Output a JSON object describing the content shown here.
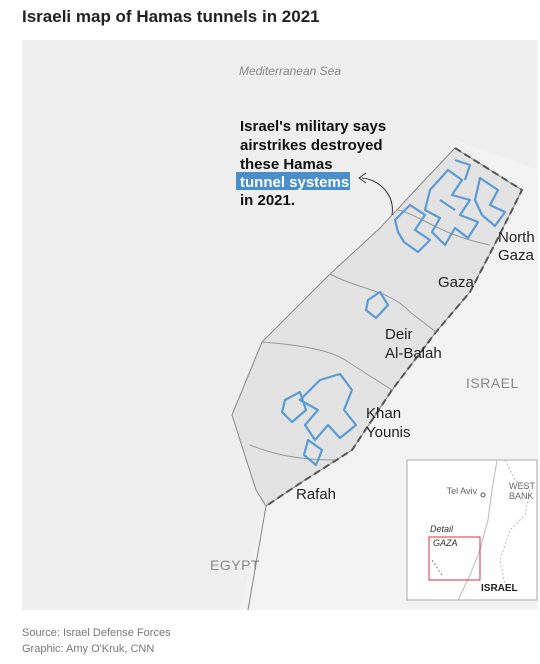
{
  "header": {
    "title": "Israeli map of Hamas tunnels in 2021"
  },
  "map": {
    "sea_label": "Mediterranean Sea",
    "annotation": {
      "lines": [
        "Israel's military says",
        "airstrikes destroyed",
        "these Hamas"
      ],
      "highlight": "tunnel systems",
      "last_line": "in 2021."
    },
    "regions": [
      {
        "lines": [
          "North",
          "Gaza"
        ]
      },
      {
        "lines": [
          "Gaza"
        ]
      },
      {
        "lines": [
          "Deir",
          "Al-Balah"
        ]
      },
      {
        "lines": [
          "Khan",
          "Younis"
        ]
      },
      {
        "lines": [
          "Rafah"
        ]
      }
    ],
    "countries": [
      "ISRAEL",
      "EGYPT"
    ]
  },
  "inset": {
    "city": "Tel Aviv",
    "west_bank": [
      "WEST",
      "BANK"
    ],
    "detail_label": "Detail",
    "detail_area": "GAZA",
    "country": "ISRAEL"
  },
  "footer": {
    "source": "Source: Israel Defense Forces",
    "credit": "Graphic: Amy O'Kruk, CNN"
  }
}
